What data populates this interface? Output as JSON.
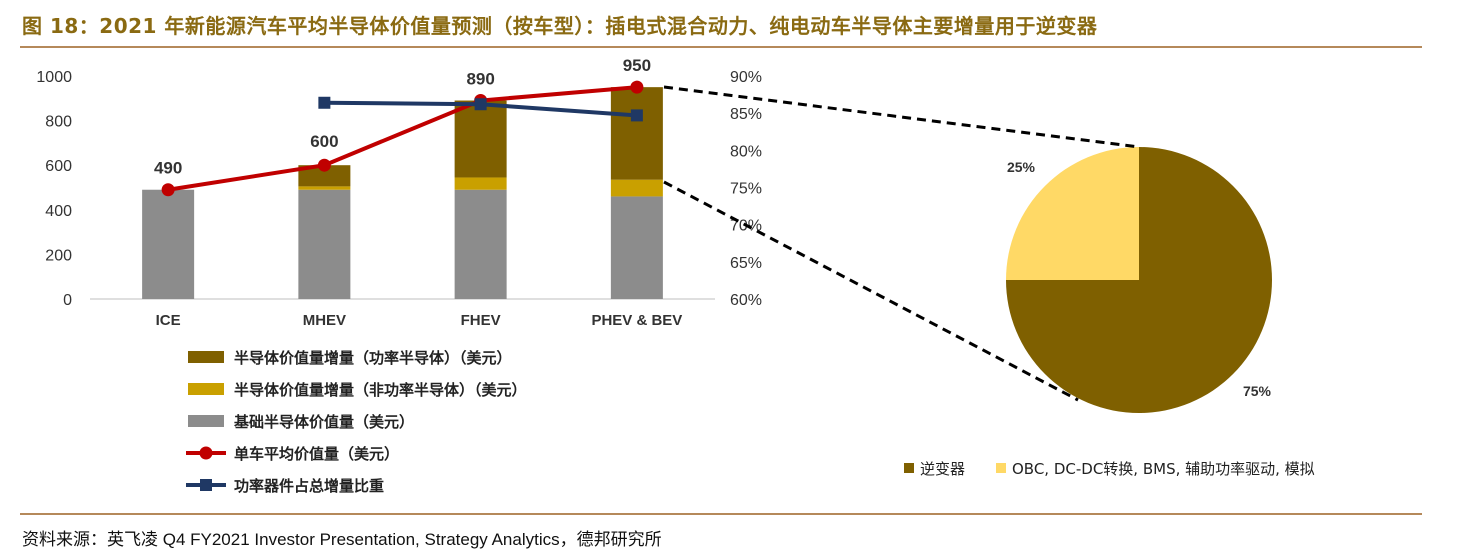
{
  "figure": {
    "title": "图 18：2021 年新能源汽车平均半导体价值量预测（按车型）：插电式混合动力、纯电动车半导体主要增量用于逆变器",
    "source": "资料来源：英飞凌 Q4 FY2021 Investor Presentation, Strategy Analytics，德邦研究所"
  },
  "colors": {
    "power_increment": "#7f6000",
    "nonpower_increment": "#c9a000",
    "base": "#8c8c8c",
    "avg_line": "#c00000",
    "share_line": "#1f3864",
    "pie_inverter": "#7f6000",
    "pie_other": "#ffd966",
    "title": "#8a6a12",
    "rule": "#b5895a"
  },
  "chart_data": [
    {
      "type": "bar",
      "stacked": true,
      "categories": [
        "ICE",
        "MHEV",
        "FHEV",
        "PHEV & BEV"
      ],
      "ylim": [
        0,
        1000
      ],
      "yticks": [
        "0",
        "200",
        "400",
        "600",
        "800",
        "1000"
      ],
      "y2lim": [
        0.6,
        0.9
      ],
      "y2ticks": [
        "60%",
        "65%",
        "70%",
        "75%",
        "80%",
        "85%",
        "90%"
      ],
      "series": [
        {
          "name": "基础半导体价值量（美元）",
          "kind": "bar",
          "color_key": "base",
          "values": [
            490,
            490,
            490,
            460
          ]
        },
        {
          "name": "半导体价值量增量（非功率半导体）（美元）",
          "kind": "bar",
          "color_key": "nonpower_increment",
          "values": [
            0,
            15,
            55,
            75
          ]
        },
        {
          "name": "半导体价值量增量（功率半导体）（美元）",
          "kind": "bar",
          "color_key": "power_increment",
          "values": [
            0,
            95,
            345,
            415
          ]
        },
        {
          "name": "单车平均价值量（美元）",
          "kind": "line",
          "axis": "left",
          "color_key": "avg_line",
          "values": [
            490,
            600,
            890,
            950
          ],
          "labels": [
            "490",
            "600",
            "890",
            "950"
          ]
        },
        {
          "name": "功率器件占总增量比重",
          "kind": "line",
          "axis": "right",
          "color_key": "share_line",
          "values": [
            null,
            0.864,
            0.862,
            0.847
          ]
        }
      ],
      "legend_order": [
        2,
        1,
        0,
        3,
        4
      ],
      "legend_placement": "bottom-left"
    },
    {
      "type": "pie",
      "labels": [
        "逆变器",
        "OBC, DC-DC转换, BMS, 辅助功率驱动, 模拟"
      ],
      "values": [
        75,
        25
      ],
      "value_labels": [
        "75%",
        "25%"
      ],
      "legend_placement": "bottom"
    }
  ]
}
